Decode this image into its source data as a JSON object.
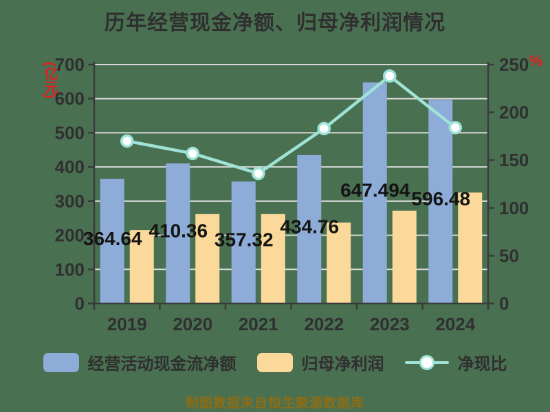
{
  "title": "历年经营现金净额、归母净利润情况",
  "source_note": "制图数据来自恒生聚源数据库",
  "colors": {
    "bg": "#4a7052",
    "grid": "#d9d9d9",
    "axis": "#3a3a3a",
    "tick-text": "#303030",
    "title-text": "#2f2f2f",
    "legend-text": "#2f2f2f",
    "data-label": "#141414",
    "unit-red": "#e02020",
    "source-text": "#8c6d15",
    "marker-fill": "#ffffff"
  },
  "chart_data": {
    "type": "bar",
    "subtype": "grouped bars with overlay line (dual axis)",
    "categories": [
      "2019",
      "2020",
      "2021",
      "2022",
      "2023",
      "2024"
    ],
    "series": [
      {
        "name": "经营活动现金流净额",
        "type": "bar",
        "axis": "left",
        "color": "#8dacd8",
        "values": [
          364.64,
          410.36,
          357.32,
          434.76,
          647.49,
          596.48
        ],
        "labels": [
          "364.64",
          "410.36",
          "357.32",
          "434.76",
          "647.494",
          "596.48"
        ]
      },
      {
        "name": "归母净利润",
        "type": "bar",
        "axis": "left",
        "color": "#fbd99a",
        "values": [
          215,
          262,
          262,
          237,
          272,
          325
        ]
      },
      {
        "name": "净现比",
        "type": "line",
        "axis": "right",
        "color": "#9fe3d7",
        "values": [
          170,
          157,
          136,
          183,
          238,
          184
        ]
      }
    ],
    "left_axis": {
      "unit": "(亿元)",
      "min": 0,
      "max": 700,
      "tick_step": 100
    },
    "right_axis": {
      "unit": "%",
      "min": 0,
      "max": 250,
      "tick_step": 50
    },
    "grid": true,
    "legend_position": "bottom"
  }
}
